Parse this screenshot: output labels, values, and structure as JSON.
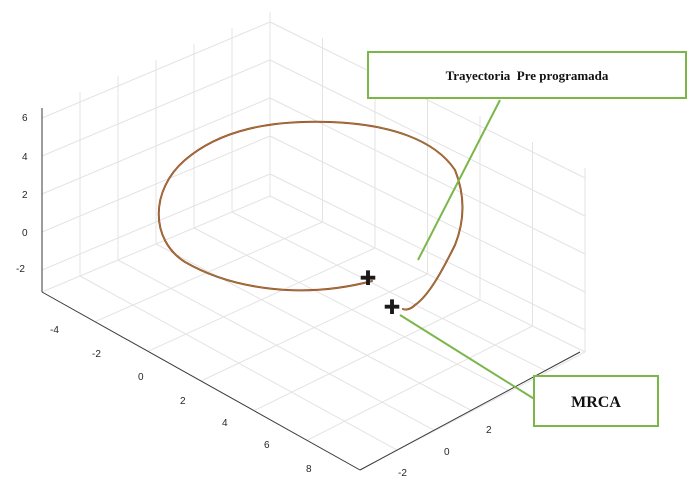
{
  "colors": {
    "trajectory_outer": "#c0392b",
    "trajectory_inner": "#6a9a3a",
    "callout": "#7ab648",
    "marker": "#1a1a1a"
  },
  "annotations": {
    "trajectory_box": "Trayectoria  Pre programada",
    "mrca_box": "MRCA"
  },
  "chart_data": {
    "type": "line",
    "projection": "3d",
    "grid": true,
    "z_ticks": [
      "6",
      "4",
      "2",
      "0",
      "-2"
    ],
    "x_ticks": [
      "-4",
      "-2",
      "0",
      "2",
      "4",
      "6",
      "8"
    ],
    "y_ticks": [
      "-2",
      "0",
      "2"
    ],
    "series": [
      {
        "values": "closed loop trajectory"
      }
    ],
    "markers": [
      {
        "symbol": "✚"
      },
      {
        "symbol": "✚"
      }
    ]
  }
}
